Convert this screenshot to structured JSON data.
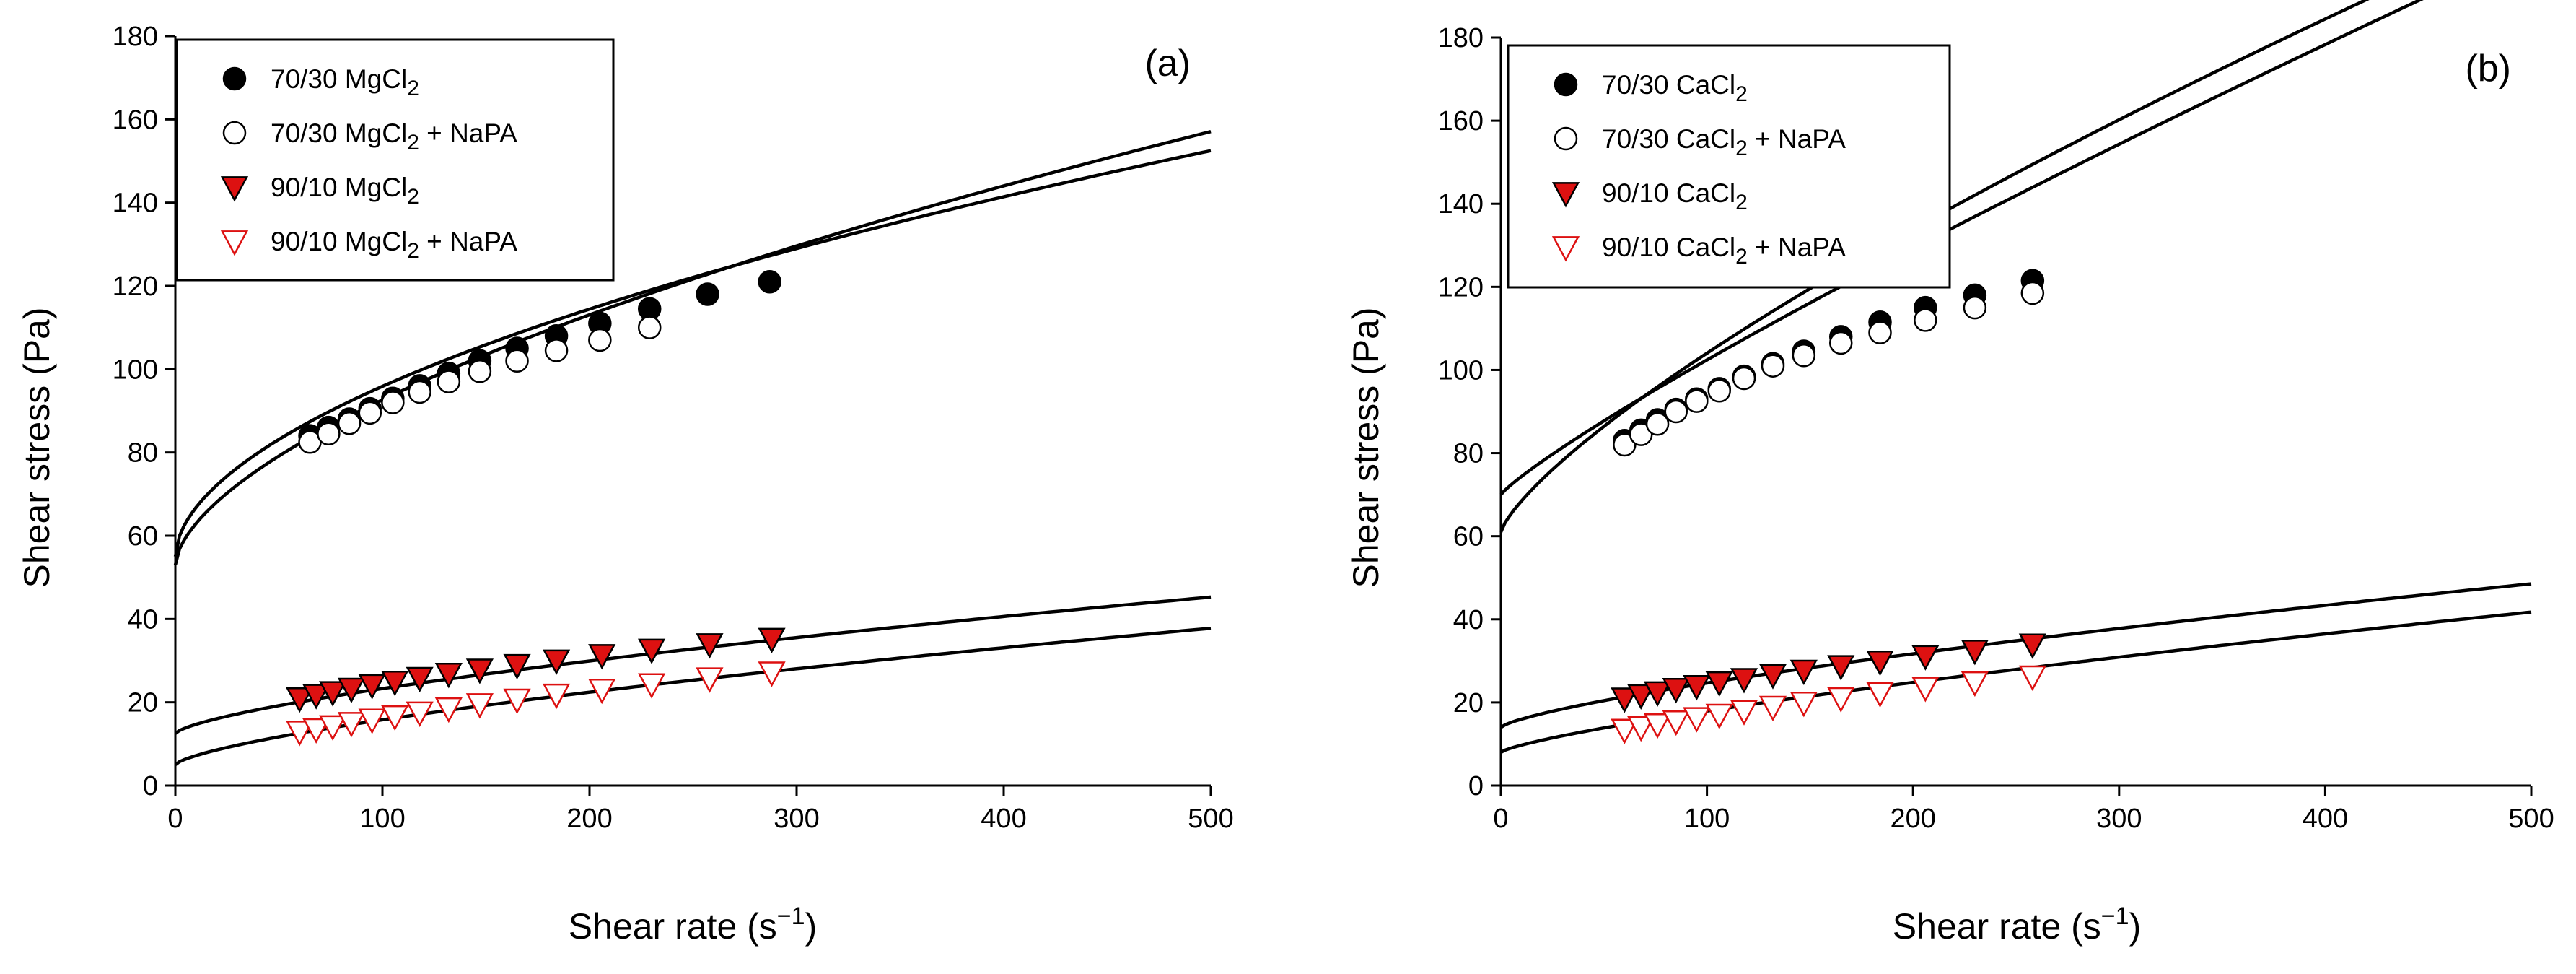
{
  "colors": {
    "filled_marker": "#000000",
    "open_marker_fill": "#ffffff",
    "red_triangle_fill": "#dd1111",
    "red_triangle_stroke": "#dd1111",
    "axis": "#000000",
    "fit_line": "#000000"
  },
  "chart_data": [
    {
      "type": "scatter",
      "panel_label": "(a)",
      "xlabel": "Shear rate (s",
      "xlabel_exp": "−1",
      "xlabel_close": ")",
      "ylabel": "Shear stress (Pa)",
      "xlim": [
        0,
        500
      ],
      "ylim": [
        0,
        180
      ],
      "x_ticks": [
        0,
        100,
        200,
        300,
        400,
        500
      ],
      "y_ticks": [
        0,
        20,
        40,
        60,
        80,
        100,
        120,
        140,
        160,
        180
      ],
      "legend": {
        "placement": "top-left"
      },
      "series": [
        {
          "name": "70/30 MgCl",
          "name_sub": "2",
          "name_suffix": "",
          "marker": "filled-circle",
          "x": [
            65,
            74,
            84,
            94,
            105,
            118,
            132,
            147,
            165,
            184,
            205,
            229,
            257,
            287
          ],
          "y": [
            84,
            86,
            88,
            90.5,
            93,
            96,
            99,
            102,
            105,
            108,
            111,
            114.5,
            118,
            121
          ],
          "fit": {
            "tau0": 53,
            "K": 2.5,
            "n": 0.6
          }
        },
        {
          "name": "70/30 MgCl",
          "name_sub": "2",
          "name_suffix": " + NaPA",
          "marker": "open-circle",
          "x": [
            65,
            74,
            84,
            94,
            105,
            118,
            132,
            147,
            165,
            184,
            205,
            229
          ],
          "y": [
            82.5,
            84.5,
            87,
            89.5,
            92,
            94.5,
            97,
            99.5,
            102,
            104.5,
            107,
            110
          ],
          "fit": {
            "tau0": 55,
            "K": 3.4,
            "n": 0.54
          }
        },
        {
          "name": "90/10 MgCl",
          "name_sub": "2",
          "name_suffix": "",
          "marker": "filled-triangle-down",
          "x": [
            60,
            68,
            76,
            85,
            95,
            106,
            118,
            132,
            147,
            165,
            184,
            206,
            230,
            258,
            288
          ],
          "y": [
            21,
            21.8,
            22.5,
            23.3,
            24.2,
            25,
            25.9,
            26.9,
            27.9,
            29,
            30.1,
            31.4,
            32.7,
            34,
            35.3
          ],
          "fit": {
            "tau0": 12.5,
            "K": 0.45,
            "n": 0.69
          }
        },
        {
          "name": "90/10 MgCl",
          "name_sub": "2",
          "name_suffix": " + NaPA",
          "marker": "open-triangle-down",
          "x": [
            60,
            68,
            76,
            85,
            95,
            106,
            118,
            132,
            147,
            165,
            184,
            206,
            230,
            258,
            288
          ],
          "y": [
            13,
            13.6,
            14.3,
            15.1,
            15.9,
            16.7,
            17.6,
            18.6,
            19.6,
            20.7,
            21.9,
            23.1,
            24.4,
            25.8,
            27.2
          ],
          "fit": {
            "tau0": 5,
            "K": 0.45,
            "n": 0.69
          }
        }
      ]
    },
    {
      "type": "scatter",
      "panel_label": "(b)",
      "xlabel": "Shear rate (s",
      "xlabel_exp": "−1",
      "xlabel_close": ")",
      "ylabel": "Shear stress (Pa)",
      "xlim": [
        0,
        500
      ],
      "ylim": [
        0,
        180
      ],
      "x_ticks": [
        0,
        100,
        200,
        300,
        400,
        500
      ],
      "y_ticks": [
        0,
        20,
        40,
        60,
        80,
        100,
        120,
        140,
        160,
        180
      ],
      "legend": {
        "placement": "top-left"
      },
      "series": [
        {
          "name": "70/30 CaCl",
          "name_sub": "2",
          "name_suffix": "",
          "marker": "filled-circle",
          "x": [
            60,
            68,
            76,
            85,
            95,
            106,
            118,
            132,
            147,
            165,
            184,
            206,
            230,
            258
          ],
          "y": [
            83,
            85.5,
            88,
            90.5,
            93,
            95.5,
            98.5,
            101.5,
            104.5,
            108,
            111.5,
            115,
            118,
            121.5
          ],
          "fit": {
            "tau0": 70,
            "K": 0.59,
            "n": 0.87
          }
        },
        {
          "name": "70/30 CaCl",
          "name_sub": "2",
          "name_suffix": " + NaPA",
          "marker": "open-circle",
          "x": [
            60,
            68,
            76,
            85,
            95,
            106,
            118,
            132,
            147,
            165,
            184,
            206,
            230,
            258
          ],
          "y": [
            82,
            84.5,
            87,
            90,
            92.5,
            95,
            98,
            101,
            103.5,
            106.5,
            109,
            112,
            115,
            118.5
          ],
          "fit": {
            "tau0": 61,
            "K": 1.3,
            "n": 0.76
          }
        },
        {
          "name": "90/10 CaCl",
          "name_sub": "2",
          "name_suffix": "",
          "marker": "filled-triangle-down",
          "x": [
            60,
            68,
            76,
            85,
            95,
            106,
            118,
            132,
            147,
            165,
            184,
            206,
            230,
            258
          ],
          "y": [
            21,
            21.8,
            22.5,
            23.3,
            24,
            24.9,
            25.7,
            26.7,
            27.7,
            28.8,
            29.9,
            31.2,
            32.5,
            34
          ],
          "fit": {
            "tau0": 14,
            "K": 0.37,
            "n": 0.73
          }
        },
        {
          "name": "90/10 CaCl",
          "name_sub": "2",
          "name_suffix": " + NaPA",
          "marker": "open-triangle-down",
          "x": [
            60,
            68,
            76,
            85,
            95,
            106,
            118,
            132,
            147,
            165,
            184,
            206,
            230,
            258
          ],
          "y": [
            13.5,
            14.1,
            14.8,
            15.5,
            16.3,
            17.1,
            18,
            19,
            20,
            21.1,
            22.3,
            23.6,
            24.9,
            26.3
          ],
          "fit": {
            "tau0": 8,
            "K": 0.3,
            "n": 0.76
          }
        }
      ]
    }
  ]
}
